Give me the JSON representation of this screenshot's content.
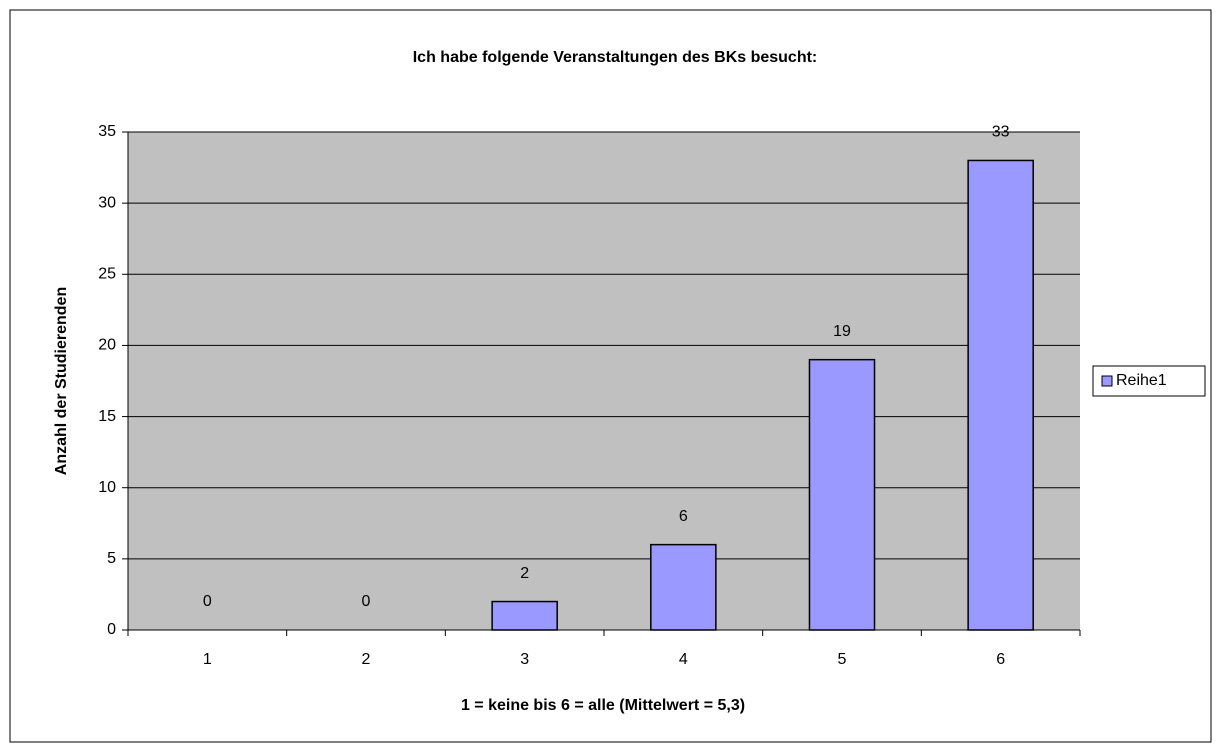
{
  "chart_data": {
    "type": "bar",
    "title": "Ich habe folgende Veranstaltungen des BKs besucht:",
    "x_label": "1 = keine bis 6 = alle (Mittelwert = 5,3)",
    "y_label": "Anzahl der Studierenden",
    "categories": [
      "1",
      "2",
      "3",
      "4",
      "5",
      "6"
    ],
    "series": [
      {
        "name": "Reihe1",
        "color": "#9999ff",
        "values": [
          0,
          0,
          2,
          6,
          19,
          33
        ]
      }
    ],
    "ylim": [
      0,
      35
    ],
    "yticks": [
      0,
      5,
      10,
      15,
      20,
      25,
      30,
      35
    ],
    "grid": true,
    "legend": "right",
    "plot_background": "#c0c0c0"
  }
}
